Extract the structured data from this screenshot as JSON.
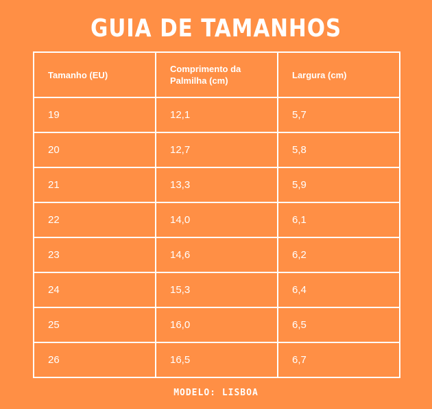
{
  "title": "GUIA DE TAMANHOS",
  "table": {
    "headers": [
      "Tamanho (EU)",
      "Comprimento da Palmilha (cm)",
      "Largura (cm)"
    ],
    "rows": [
      [
        "19",
        "12,1",
        "5,7"
      ],
      [
        "20",
        "12,7",
        "5,8"
      ],
      [
        "21",
        "13,3",
        "5,9"
      ],
      [
        "22",
        "14,0",
        "6,1"
      ],
      [
        "23",
        "14,6",
        "6,2"
      ],
      [
        "24",
        "15,3",
        "6,4"
      ],
      [
        "25",
        "16,0",
        "6,5"
      ],
      [
        "26",
        "16,5",
        "6,7"
      ]
    ]
  },
  "footer": "MODELO: LISBOA",
  "colors": {
    "background": "#FF8F45",
    "text": "#FFFFFF",
    "border": "#FFFFFF"
  }
}
